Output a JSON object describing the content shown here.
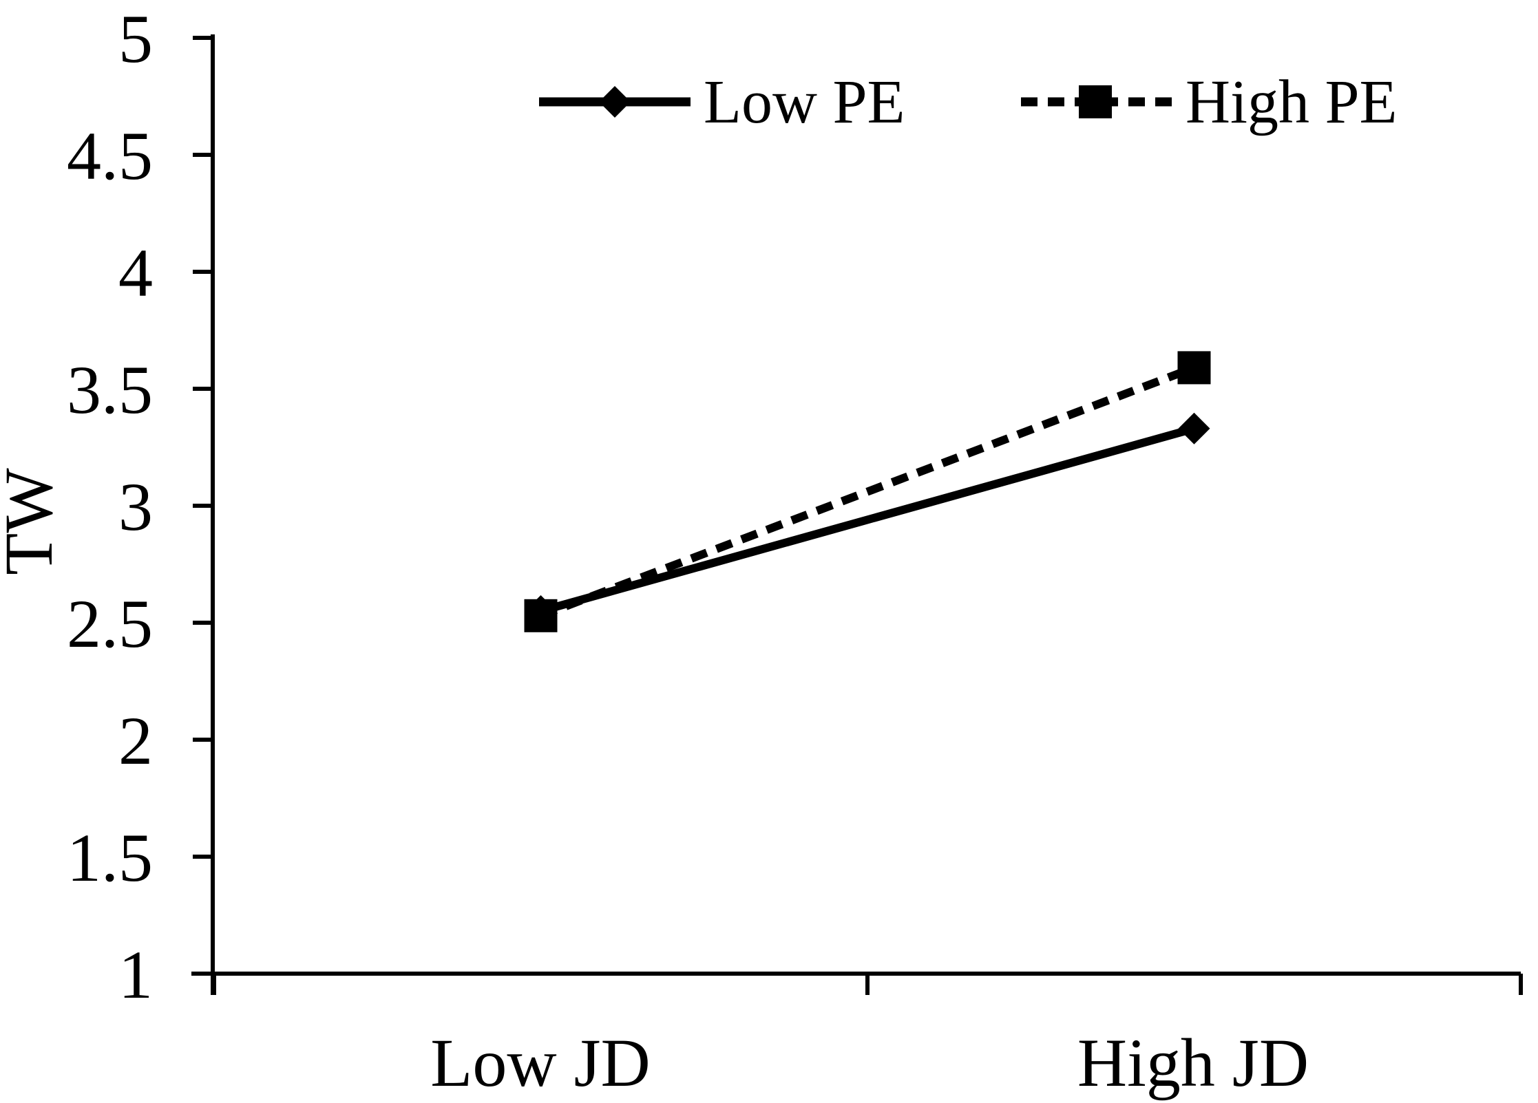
{
  "chart_data": {
    "type": "line",
    "title": "",
    "xlabel": "",
    "ylabel": "TW",
    "categories": [
      "Low JD",
      "High JD"
    ],
    "series": [
      {
        "name": "Low PE",
        "values": [
          2.55,
          3.33
        ],
        "marker": "diamond",
        "line_style": "solid",
        "color": "#000000"
      },
      {
        "name": "High PE",
        "values": [
          2.53,
          3.59
        ],
        "marker": "square",
        "line_style": "dashed",
        "color": "#000000"
      }
    ],
    "y_axis": {
      "min": 1,
      "max": 5,
      "step": 0.5,
      "tick_labels": [
        "1",
        "1.5",
        "2",
        "2.5",
        "3",
        "3.5",
        "4",
        "4.5",
        "5"
      ]
    },
    "legend_position": "top",
    "grid": false,
    "background": "#ffffff",
    "foreground": "#000000"
  }
}
